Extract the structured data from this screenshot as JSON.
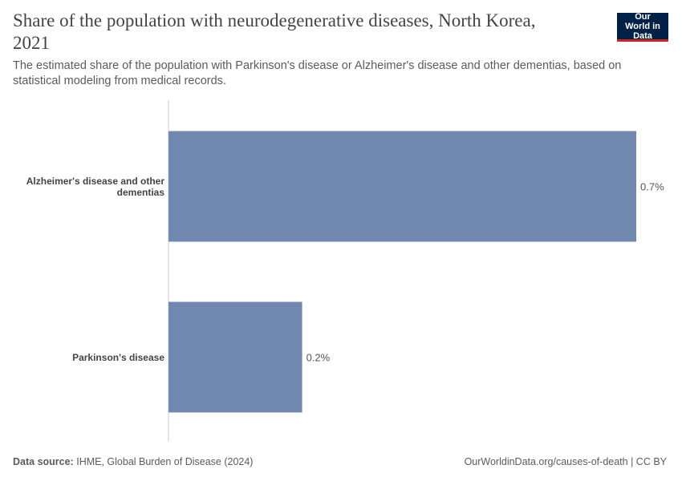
{
  "chart_data": {
    "type": "bar",
    "orientation": "horizontal",
    "title": "Share of the population with neurodegenerative diseases, North Korea, 2021",
    "subtitle": "The estimated share of the population with Parkinson's disease or Alzheimer's disease and other dementias, based on statistical modeling from medical records.",
    "logo": "Our World in Data",
    "categories": [
      "Alzheimer's disease and other dementias",
      "Parkinson's disease"
    ],
    "values": [
      0.7,
      0.2
    ],
    "value_labels": [
      "0.7%",
      "0.2%"
    ],
    "color": "#7088b0",
    "source_label": "Data source:",
    "source": "IHME, Global Burden of Disease (2024)",
    "footer_right": "OurWorldinData.org/causes-of-death | CC BY"
  }
}
